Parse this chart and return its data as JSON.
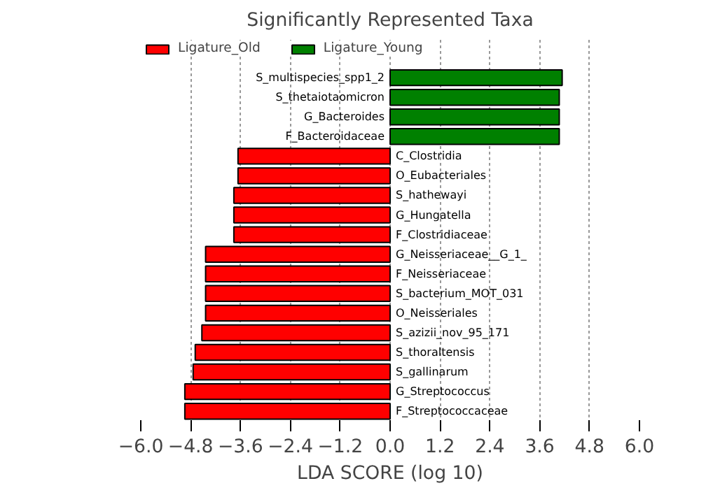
{
  "chart_data": {
    "type": "bar",
    "orientation": "horizontal",
    "title": "Significantly Represented Taxa",
    "xlabel": "LDA SCORE (log 10)",
    "categories": [
      "S_multispecies_spp1_2",
      "S_thetaiotaomicron",
      "G_Bacteroides",
      "F_Bacteroidaceae",
      "C_Clostridia",
      "O_Eubacteriales",
      "S_hathewayi",
      "G_Hungatella",
      "F_Clostridiaceae",
      "G_Neisseriaceae__G_1_",
      "F_Neisseriaceae",
      "S_bacterium_MOT_031",
      "O_Neisseriales",
      "S_azizii_nov_95_171",
      "S_thoraltensis",
      "S_gallinarum",
      "G_Streptococcus",
      "F_Streptococcaceae"
    ],
    "series": [
      {
        "name": "Ligature_Old",
        "color": "#ff0000",
        "values": [
          null,
          null,
          null,
          null,
          -3.66,
          -3.66,
          -3.76,
          -3.76,
          -3.76,
          -4.44,
          -4.44,
          -4.44,
          -4.44,
          -4.53,
          -4.69,
          -4.74,
          -4.94,
          -4.94
        ]
      },
      {
        "name": "Ligature_Young",
        "color": "#008000",
        "values": [
          4.14,
          4.07,
          4.07,
          4.07,
          null,
          null,
          null,
          null,
          null,
          null,
          null,
          null,
          null,
          null,
          null,
          null,
          null,
          null
        ]
      }
    ],
    "xlim": [
      -6.0,
      6.0
    ],
    "xticks": [
      {
        "value": -6,
        "label": "−6.0"
      },
      {
        "value": -4.8,
        "label": "−4.8"
      },
      {
        "value": -3.6,
        "label": "−3.6"
      },
      {
        "value": -2.4,
        "label": "−2.4"
      },
      {
        "value": -1.2,
        "label": "−1.2"
      },
      {
        "value": 0,
        "label": "0.0"
      },
      {
        "value": 1.2,
        "label": "1.2"
      },
      {
        "value": 2.4,
        "label": "2.4"
      },
      {
        "value": 3.6,
        "label": "3.6"
      },
      {
        "value": 4.8,
        "label": "4.8"
      },
      {
        "value": 6,
        "label": "6.0"
      }
    ],
    "grid": "x",
    "legend": "top left",
    "tick_labels": "x"
  }
}
